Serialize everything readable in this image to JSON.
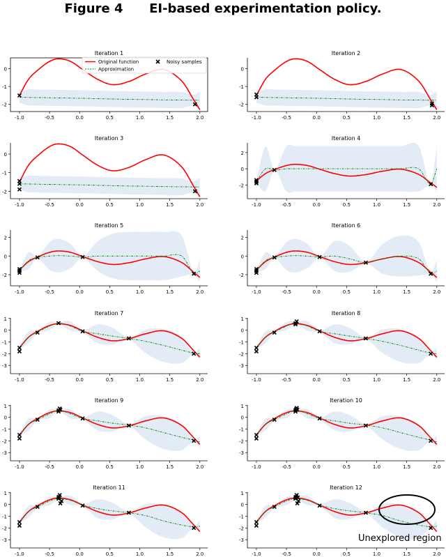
{
  "figure": {
    "label": "Figure 4",
    "caption": "EI-based experimentation policy."
  },
  "colors": {
    "original_function": "#ff0000",
    "approximation": "#008000",
    "confidence_band": "#e3ecf6",
    "samples": "#000000"
  },
  "legend": {
    "original_function": "Original function",
    "approximation": "Approximation",
    "noisy_samples": "Noisy samples",
    "placement": "top-right",
    "in_panel": "Iteration 1"
  },
  "annotation": {
    "text": "Unexplored region",
    "panel": "Iteration 12",
    "shape": "ellipse"
  },
  "x_grid": [
    -1,
    -0.85,
    -0.7,
    -0.5,
    -0.35,
    -0.15,
    0.05,
    0.3,
    0.55,
    0.82,
    1.1,
    1.4,
    1.7,
    1.9,
    2.0
  ],
  "original_function": [
    -1.5,
    -0.6,
    -0.1,
    0.4,
    0.55,
    0.4,
    -0.05,
    -0.6,
    -0.9,
    -0.72,
    -0.3,
    -0.05,
    -0.7,
    -1.75,
    -2.3
  ],
  "xticks": [
    -1,
    -0.5,
    0,
    0.5,
    1,
    1.5,
    2
  ],
  "xtick_labels": [
    "-1.0",
    "-0.5",
    "0.0",
    "0.5",
    "1.0",
    "1.5",
    "2.0"
  ],
  "chart_data": [
    {
      "type": "line",
      "title": "Iteration 1",
      "xlim": [
        -1.15,
        2.13
      ],
      "ylim": [
        -2.4,
        0.6
      ],
      "yticks": [
        0,
        -1,
        -2
      ],
      "ytick_labels": [
        "0",
        "-1",
        "-2"
      ],
      "approximation": [
        -1.6,
        -1.61,
        -1.62,
        -1.63,
        -1.64,
        -1.65,
        -1.66,
        -1.68,
        -1.7,
        -1.72,
        -1.73,
        -1.75,
        -1.76,
        -1.77,
        -1.77
      ],
      "band_halfwidth": [
        0.3,
        0.45,
        0.45,
        0.45,
        0.45,
        0.45,
        0.45,
        0.45,
        0.45,
        0.45,
        0.45,
        0.45,
        0.45,
        0.3,
        0.5
      ],
      "samples": [
        [
          -1,
          -1.5
        ],
        [
          1.92,
          -2.0
        ]
      ]
    },
    {
      "type": "line",
      "title": "Iteration 2",
      "xlim": [
        -1.15,
        2.13
      ],
      "ylim": [
        -2.4,
        0.6
      ],
      "yticks": [
        0,
        -1,
        -2
      ],
      "ytick_labels": [
        "0",
        "-1",
        "-2"
      ],
      "approximation": [
        -1.6,
        -1.61,
        -1.62,
        -1.63,
        -1.64,
        -1.65,
        -1.66,
        -1.68,
        -1.7,
        -1.72,
        -1.73,
        -1.75,
        -1.76,
        -1.77,
        -1.77
      ],
      "band_halfwidth": [
        0.3,
        0.45,
        0.45,
        0.45,
        0.45,
        0.45,
        0.45,
        0.45,
        0.45,
        0.45,
        0.45,
        0.45,
        0.45,
        0.3,
        0.5
      ],
      "samples": [
        [
          -1,
          -1.45
        ],
        [
          -1,
          -1.6
        ],
        [
          1.92,
          -1.95
        ],
        [
          1.92,
          -2.05
        ]
      ]
    },
    {
      "type": "line",
      "title": "Iteration 3",
      "xlim": [
        -1.15,
        2.13
      ],
      "ylim": [
        -2.4,
        0.6
      ],
      "yticks": [
        0,
        -1,
        -2
      ],
      "ytick_labels": [
        "0",
        "-1",
        "-2"
      ],
      "approximation": [
        -1.6,
        -1.61,
        -1.62,
        -1.63,
        -1.64,
        -1.65,
        -1.66,
        -1.68,
        -1.7,
        -1.72,
        -1.73,
        -1.75,
        -1.76,
        -1.77,
        -1.77
      ],
      "band_halfwidth": [
        0.3,
        0.45,
        0.45,
        0.45,
        0.45,
        0.45,
        0.45,
        0.45,
        0.45,
        0.45,
        0.45,
        0.45,
        0.45,
        0.3,
        0.5
      ],
      "samples": [
        [
          -1,
          -1.45
        ],
        [
          -1,
          -1.6
        ],
        [
          -1,
          -1.9
        ],
        [
          1.92,
          -2.0
        ]
      ]
    },
    {
      "type": "line",
      "title": "Iteration 4",
      "xlim": [
        -1.15,
        2.13
      ],
      "ylim": [
        -3.7,
        3.2
      ],
      "yticks": [
        2,
        0,
        -2
      ],
      "ytick_labels": [
        "2",
        "0",
        "-2"
      ],
      "approximation": [
        -1.6,
        0,
        -0.15,
        0,
        0,
        0,
        0,
        0,
        0,
        0,
        0,
        0,
        0,
        -1.9,
        0
      ],
      "band_halfwidth": [
        0.1,
        2.8,
        0.1,
        2.8,
        2.8,
        2.8,
        2.8,
        2.8,
        2.8,
        2.8,
        2.8,
        2.8,
        2.8,
        0.1,
        2.8
      ],
      "samples": [
        [
          -1,
          -1.4
        ],
        [
          -1,
          -1.6
        ],
        [
          -1,
          -1.8
        ],
        [
          -0.7,
          -0.15
        ],
        [
          1.9,
          -1.9
        ]
      ]
    },
    {
      "type": "line",
      "title": "Iteration 5",
      "xlim": [
        -1.15,
        2.13
      ],
      "ylim": [
        -3.2,
        2.8
      ],
      "yticks": [
        2,
        0,
        -2
      ],
      "ytick_labels": [
        "2",
        "0",
        "-2"
      ],
      "approximation": [
        -1.6,
        -0.5,
        -0.15,
        0,
        0.05,
        0,
        -0.1,
        0,
        0,
        0,
        0,
        0,
        0,
        -1.9,
        -1.6
      ],
      "band_halfwidth": [
        0.1,
        0.9,
        0.1,
        1.5,
        1.8,
        1.3,
        0.1,
        1.6,
        2.4,
        2.6,
        2.6,
        2.6,
        2.2,
        0.1,
        1.2
      ],
      "samples": [
        [
          -1,
          -1.4
        ],
        [
          -1,
          -1.6
        ],
        [
          -1,
          -1.8
        ],
        [
          -0.7,
          -0.15
        ],
        [
          0.05,
          -0.1
        ],
        [
          1.9,
          -1.9
        ]
      ]
    },
    {
      "type": "line",
      "title": "Iteration 6",
      "xlim": [
        -1.15,
        2.13
      ],
      "ylim": [
        -3.2,
        2.8
      ],
      "yticks": [
        2,
        0,
        -2
      ],
      "ytick_labels": [
        "2",
        "0",
        "-2"
      ],
      "approximation": [
        -1.6,
        -0.5,
        -0.15,
        0,
        0.05,
        0,
        -0.1,
        0,
        -0.3,
        -0.7,
        -0.3,
        0,
        -0.3,
        -1.9,
        -1.6
      ],
      "band_halfwidth": [
        0.1,
        0.9,
        0.1,
        1.5,
        1.8,
        1.3,
        0.1,
        1.6,
        1.4,
        0.1,
        1.6,
        2.2,
        1.8,
        0.1,
        1.2
      ],
      "samples": [
        [
          -1,
          -1.4
        ],
        [
          -1,
          -1.6
        ],
        [
          -1,
          -1.8
        ],
        [
          -0.7,
          -0.15
        ],
        [
          0.05,
          -0.1
        ],
        [
          0.82,
          -0.7
        ],
        [
          1.9,
          -1.9
        ]
      ]
    },
    {
      "type": "line",
      "title": "Iteration 7",
      "xlim": [
        -1.15,
        2.13
      ],
      "ylim": [
        -3.7,
        1.05
      ],
      "yticks": [
        1,
        0,
        -1,
        -2,
        -3
      ],
      "ytick_labels": [
        "1",
        "0",
        "-1",
        "-2",
        "-3"
      ],
      "approximation": [
        -1.5,
        -0.6,
        -0.15,
        0.35,
        0.6,
        0.35,
        -0.1,
        -0.3,
        -0.5,
        -0.7,
        -0.95,
        -1.3,
        -1.7,
        -1.95,
        -2.0
      ],
      "band_halfwidth": [
        0.1,
        0.5,
        0.1,
        0.35,
        0.1,
        0.4,
        0.1,
        0.8,
        0.7,
        0.1,
        1.0,
        1.4,
        1.1,
        0.1,
        0.5
      ],
      "samples": [
        [
          -1,
          -1.5
        ],
        [
          -1,
          -1.8
        ],
        [
          -0.7,
          -0.2
        ],
        [
          -0.35,
          0.6
        ],
        [
          0.05,
          -0.1
        ],
        [
          0.82,
          -0.7
        ],
        [
          1.9,
          -2.0
        ]
      ]
    },
    {
      "type": "line",
      "title": "Iteration 8",
      "xlim": [
        -1.15,
        2.13
      ],
      "ylim": [
        -3.7,
        1.05
      ],
      "yticks": [
        1,
        0,
        -1,
        -2,
        -3
      ],
      "ytick_labels": [
        "1",
        "0",
        "-1",
        "-2",
        "-3"
      ],
      "approximation": [
        -1.5,
        -0.6,
        -0.15,
        0.35,
        0.65,
        0.35,
        -0.1,
        -0.3,
        -0.5,
        -0.7,
        -0.95,
        -1.3,
        -1.7,
        -1.95,
        -2.0
      ],
      "band_halfwidth": [
        0.1,
        0.5,
        0.1,
        0.35,
        0.1,
        0.4,
        0.1,
        0.8,
        0.7,
        0.1,
        1.0,
        1.4,
        1.1,
        0.1,
        0.5
      ],
      "samples": [
        [
          -1,
          -1.5
        ],
        [
          -1,
          -1.8
        ],
        [
          -0.7,
          -0.2
        ],
        [
          -0.35,
          0.6
        ],
        [
          -0.33,
          0.75
        ],
        [
          -0.35,
          0.5
        ],
        [
          0.05,
          -0.1
        ],
        [
          0.82,
          -0.7
        ],
        [
          1.9,
          -2.0
        ]
      ]
    },
    {
      "type": "line",
      "title": "Iteration 9",
      "xlim": [
        -1.15,
        2.13
      ],
      "ylim": [
        -3.7,
        1.05
      ],
      "yticks": [
        1,
        0,
        -1,
        -2,
        -3
      ],
      "ytick_labels": [
        "1",
        "0",
        "-1",
        "-2",
        "-3"
      ],
      "approximation": [
        -1.5,
        -0.6,
        -0.2,
        0.3,
        0.6,
        0.3,
        -0.1,
        -0.3,
        -0.5,
        -0.65,
        -0.9,
        -1.3,
        -1.7,
        -1.95,
        -2.1
      ],
      "band_halfwidth": [
        0.1,
        0.5,
        0.1,
        0.35,
        0.1,
        0.4,
        0.1,
        0.8,
        0.7,
        0.1,
        1.0,
        1.4,
        1.1,
        0.1,
        0.5
      ],
      "samples": [
        [
          -1,
          -1.5
        ],
        [
          -1,
          -1.8
        ],
        [
          -0.7,
          -0.2
        ],
        [
          -0.35,
          0.6
        ],
        [
          -0.33,
          0.75
        ],
        [
          -0.35,
          0.5
        ],
        [
          -0.32,
          0.65
        ],
        [
          0.05,
          -0.1
        ],
        [
          0.82,
          -0.7
        ],
        [
          1.9,
          -2.0
        ]
      ]
    },
    {
      "type": "line",
      "title": "Iteration 10",
      "xlim": [
        -1.15,
        2.13
      ],
      "ylim": [
        -3.7,
        1.05
      ],
      "yticks": [
        1,
        0,
        -1,
        -2,
        -3
      ],
      "ytick_labels": [
        "1",
        "0",
        "-1",
        "-2",
        "-3"
      ],
      "approximation": [
        -1.5,
        -0.6,
        -0.2,
        0.3,
        0.6,
        0.3,
        -0.1,
        -0.3,
        -0.5,
        -0.65,
        -0.9,
        -1.3,
        -1.7,
        -1.95,
        -2.1
      ],
      "band_halfwidth": [
        0.1,
        0.5,
        0.1,
        0.35,
        0.1,
        0.4,
        0.1,
        0.8,
        0.7,
        0.1,
        1.0,
        1.4,
        1.1,
        0.1,
        0.5
      ],
      "samples": [
        [
          -1,
          -1.5
        ],
        [
          -1,
          -1.8
        ],
        [
          -0.7,
          -0.2
        ],
        [
          -0.35,
          0.6
        ],
        [
          -0.33,
          0.8
        ],
        [
          -0.35,
          0.5
        ],
        [
          -0.32,
          0.65
        ],
        [
          -0.34,
          0.7
        ],
        [
          0.05,
          -0.1
        ],
        [
          0.82,
          -0.7
        ],
        [
          1.9,
          -2.0
        ]
      ]
    },
    {
      "type": "line",
      "title": "Iteration 11",
      "xlim": [
        -1.15,
        2.13
      ],
      "ylim": [
        -3.7,
        1.05
      ],
      "yticks": [
        1,
        0,
        -1,
        -2,
        -3
      ],
      "ytick_labels": [
        "1",
        "0",
        "-1",
        "-2",
        "-3"
      ],
      "approximation": [
        -1.5,
        -0.6,
        -0.2,
        0.3,
        0.5,
        0.35,
        -0.05,
        -0.35,
        -0.55,
        -0.7,
        -0.95,
        -1.4,
        -1.75,
        -1.9,
        -1.85
      ],
      "band_halfwidth": [
        0.1,
        0.5,
        0.1,
        0.35,
        0.15,
        0.4,
        0.1,
        0.8,
        0.7,
        0.1,
        1.0,
        1.4,
        1.1,
        0.1,
        0.5
      ],
      "samples": [
        [
          -1,
          -1.5
        ],
        [
          -1,
          -1.8
        ],
        [
          -0.7,
          -0.2
        ],
        [
          -0.35,
          0.6
        ],
        [
          -0.33,
          0.8
        ],
        [
          -0.35,
          0.5
        ],
        [
          -0.32,
          0.1
        ],
        [
          -0.3,
          0.3
        ],
        [
          -0.34,
          0.65
        ],
        [
          0.05,
          -0.1
        ],
        [
          0.82,
          -0.7
        ],
        [
          1.9,
          -2.0
        ]
      ]
    },
    {
      "type": "line",
      "title": "Iteration 12",
      "xlim": [
        -1.15,
        2.13
      ],
      "ylim": [
        -3.7,
        1.05
      ],
      "yticks": [
        1,
        0,
        -1,
        -2,
        -3
      ],
      "ytick_labels": [
        "1",
        "0",
        "-1",
        "-2",
        "-3"
      ],
      "approximation": [
        -1.5,
        -0.6,
        -0.2,
        0.3,
        0.5,
        0.35,
        -0.05,
        -0.35,
        -0.55,
        -0.7,
        -0.95,
        -1.4,
        -1.75,
        -1.9,
        -1.85
      ],
      "band_halfwidth": [
        0.1,
        0.5,
        0.1,
        0.35,
        0.15,
        0.4,
        0.1,
        0.8,
        0.7,
        0.1,
        1.0,
        1.4,
        1.1,
        0.1,
        0.5
      ],
      "samples": [
        [
          -1,
          -1.5
        ],
        [
          -1,
          -1.8
        ],
        [
          -0.7,
          -0.2
        ],
        [
          -0.35,
          0.6
        ],
        [
          -0.33,
          0.8
        ],
        [
          -0.35,
          0.5
        ],
        [
          -0.32,
          0.1
        ],
        [
          -0.3,
          0.3
        ],
        [
          -0.34,
          0.65
        ],
        [
          -0.31,
          0.6
        ],
        [
          0.05,
          -0.1
        ],
        [
          0.82,
          -0.7
        ],
        [
          1.9,
          -2.0
        ]
      ]
    }
  ]
}
